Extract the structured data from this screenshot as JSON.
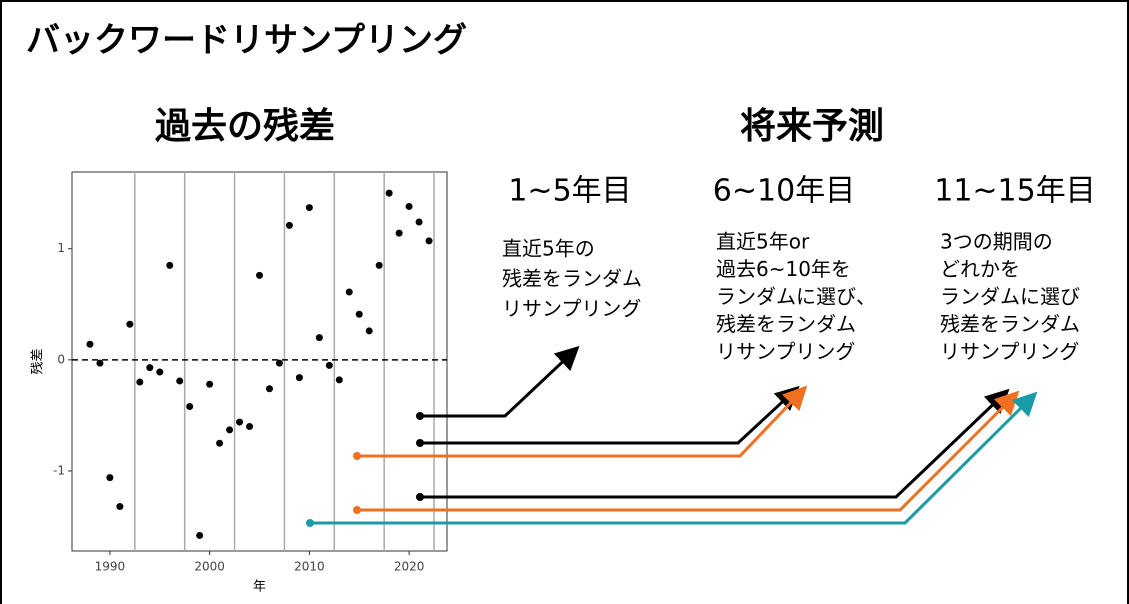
{
  "title": "バックワードリサンプリング",
  "sections": {
    "past": "過去の残差",
    "future": "将来予測"
  },
  "columns": [
    {
      "heading": "1~5年目",
      "lines": [
        "直近5年の",
        "残差をランダム",
        "リサンプリング"
      ]
    },
    {
      "heading": "6~10年目",
      "lines": [
        "直近5年or",
        "過去6~10年を",
        "ランダムに選び、",
        "残差をランダム",
        "リサンプリング"
      ]
    },
    {
      "heading": "11~15年目",
      "lines": [
        "3つの期間の",
        "どれかを",
        "ランダムに選び",
        "残差をランダム",
        "リサンプリング"
      ]
    }
  ],
  "chart_data": {
    "type": "scatter",
    "x": [
      1988,
      1989,
      1990,
      1991,
      1992,
      1993,
      1994,
      1995,
      1996,
      1997,
      1998,
      1999,
      2000,
      2001,
      2002,
      2003,
      2004,
      2005,
      2006,
      2007,
      2008,
      2009,
      2010,
      2011,
      2012,
      2013,
      2014,
      2015,
      2016,
      2017,
      2018,
      2019,
      2020,
      2021,
      2022
    ],
    "values": [
      0.14,
      -0.03,
      -1.06,
      -1.32,
      0.32,
      -0.2,
      -0.07,
      -0.11,
      0.85,
      -0.19,
      -0.42,
      -1.58,
      -0.22,
      -0.75,
      -0.63,
      -0.56,
      -0.6,
      0.76,
      -0.26,
      -0.03,
      1.21,
      -0.16,
      1.37,
      0.2,
      -0.05,
      -0.18,
      0.61,
      0.41,
      0.26,
      0.85,
      1.5,
      1.14,
      1.38,
      1.24,
      1.07
    ],
    "xlim": [
      1986.2,
      2023.8
    ],
    "ylim": [
      -1.72,
      1.69
    ],
    "xticks": [
      1990,
      2000,
      2010,
      2020
    ],
    "yticks": [
      -1,
      0,
      1
    ],
    "xlabel": "年",
    "ylabel": "残差",
    "color": "#000000",
    "hline": 0,
    "vlines": [
      1992.5,
      1997.5,
      2002.5,
      2007.5,
      2012.5,
      2017.5,
      2022.5
    ]
  }
}
